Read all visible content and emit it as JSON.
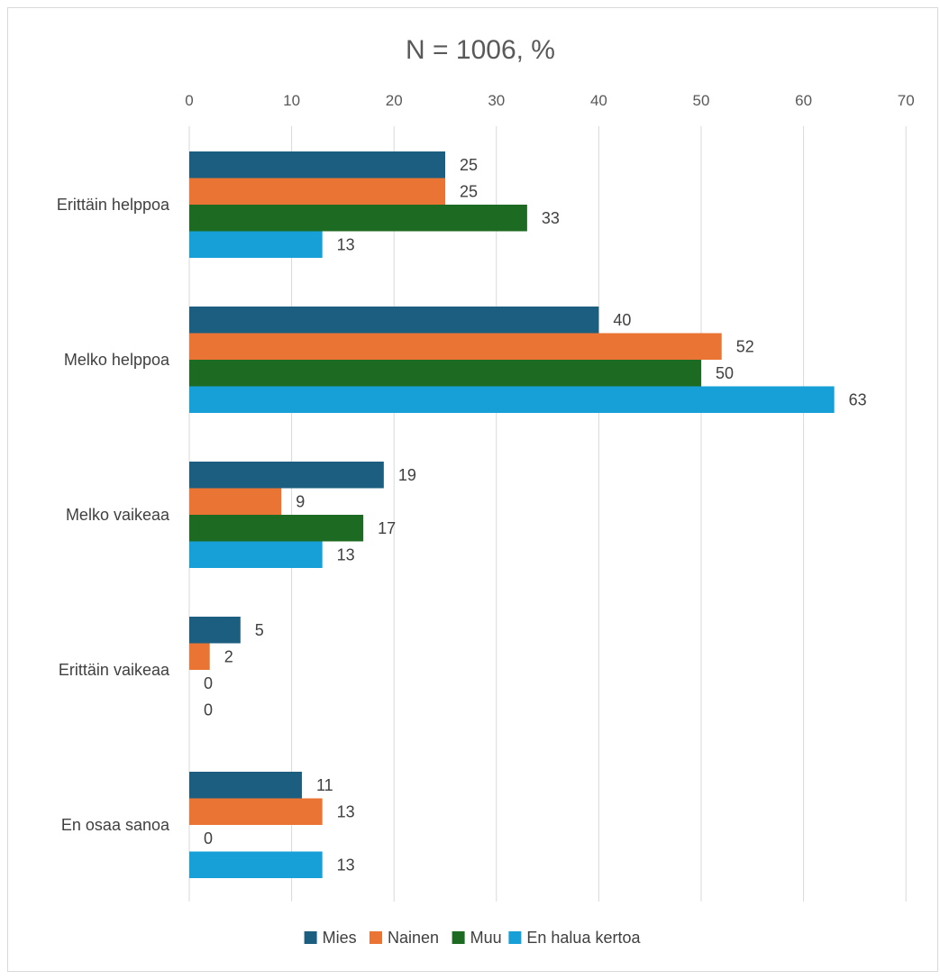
{
  "chart_data": {
    "type": "bar",
    "orientation": "horizontal",
    "title": "N = 1006, %",
    "xlim": [
      0,
      70
    ],
    "x_ticks": [
      "0",
      "10",
      "20",
      "30",
      "40",
      "50",
      "60",
      "70"
    ],
    "x_axis_position": "top",
    "grid": true,
    "legend_position": "bottom",
    "categories": [
      "Erittäin helppoa",
      "Melko helppoa",
      "Melko vaikeaa",
      "Erittäin vaikeaa",
      "En osaa sanoa"
    ],
    "series": [
      {
        "name": "Mies",
        "color": "#1b5e80",
        "values": [
          25,
          40,
          19,
          5,
          11
        ]
      },
      {
        "name": "Nainen",
        "color": "#ea7433",
        "values": [
          25,
          52,
          9,
          2,
          13
        ]
      },
      {
        "name": "Muu",
        "color": "#1d6b22",
        "values": [
          33,
          50,
          17,
          0,
          0
        ]
      },
      {
        "name": "En halua kertoa",
        "color": "#16a0d7",
        "values": [
          13,
          63,
          13,
          0,
          13
        ]
      }
    ]
  }
}
